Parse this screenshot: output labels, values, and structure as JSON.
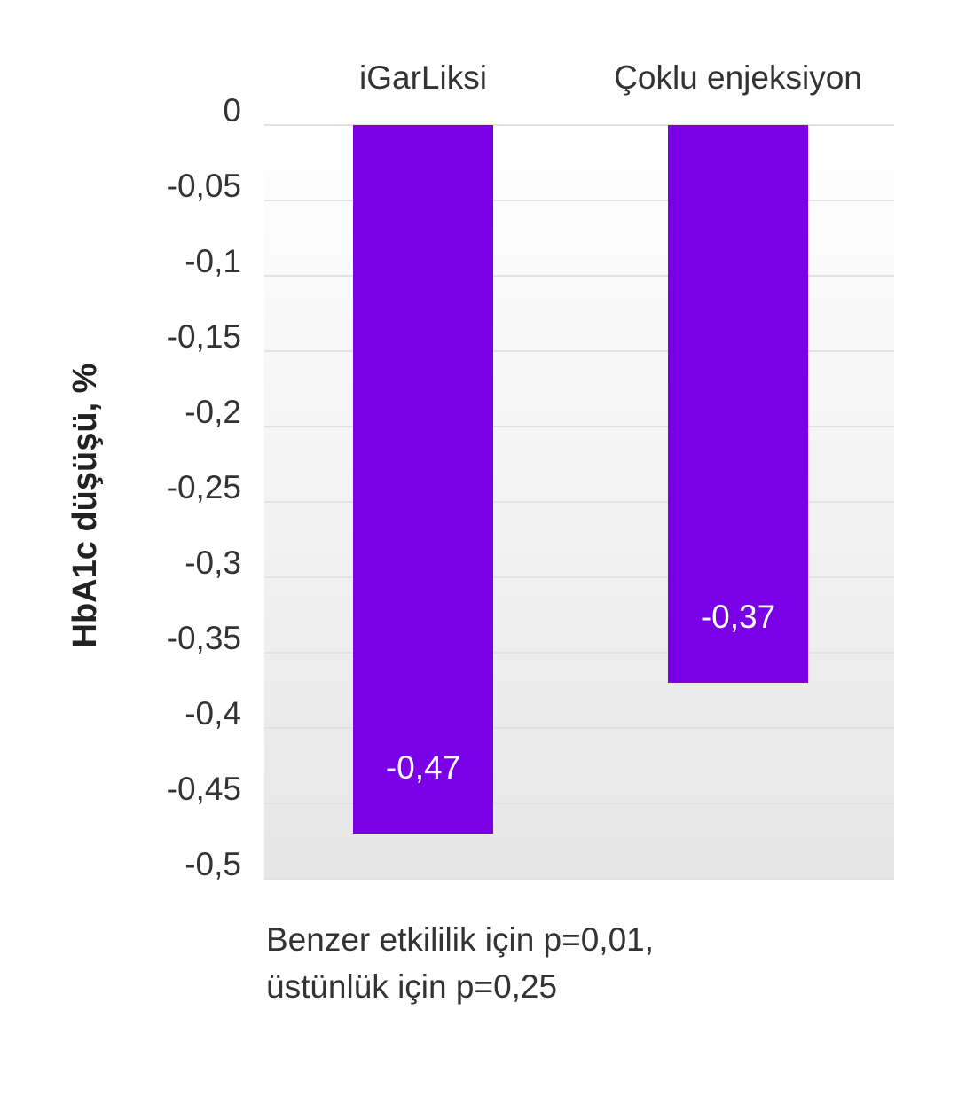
{
  "chart_data": {
    "type": "bar",
    "categories": [
      "iGarLiksi",
      "Çoklu enjeksiyon"
    ],
    "values": [
      -0.47,
      -0.37
    ],
    "value_labels": [
      "-0,47",
      "-0,37"
    ],
    "color": "#7a00e6",
    "y_label": "HbA1c düşüşü, %",
    "ylim": [
      -0.5,
      0
    ],
    "yticks": [
      0,
      {
        "value": -0.05,
        "label": "-0,05"
      },
      {
        "value": -0.1,
        "label": "-0,1"
      },
      {
        "value": -0.15,
        "label": "-0,15"
      },
      {
        "value": -0.2,
        "label": "-0,2"
      },
      {
        "value": -0.25,
        "label": "-0,25"
      },
      {
        "value": -0.3,
        "label": "-0,3"
      },
      {
        "value": -0.35,
        "label": "-0,35"
      },
      {
        "value": -0.4,
        "label": "-0,4"
      },
      {
        "value": -0.45,
        "label": "-0,45"
      },
      {
        "value": -0.5,
        "label": "-0,5"
      }
    ],
    "grid": true,
    "note": [
      "Benzer etkililik için p=0,01,",
      "üstünlük için p=0,25"
    ]
  }
}
